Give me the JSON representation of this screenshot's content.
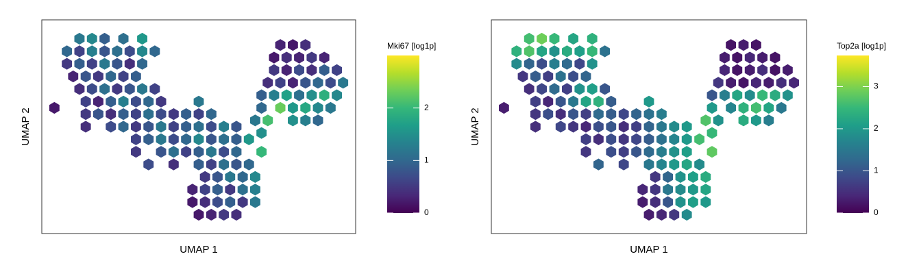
{
  "chart_data": [
    {
      "type": "hexbin",
      "xlabel": "UMAP 1",
      "ylabel": "UMAP 2",
      "colorbar_title": "Mki67 [log1p]",
      "colormap": "viridis",
      "xlim": [
        0,
        100
      ],
      "ylim": [
        0,
        68
      ],
      "clim": [
        0,
        3.0
      ],
      "cticks": [
        0,
        1,
        2
      ],
      "x": [
        12,
        16,
        20,
        26,
        32,
        8,
        12,
        16,
        20,
        24,
        28,
        32,
        36,
        8,
        12,
        16,
        20,
        24,
        28,
        32,
        10,
        14,
        18,
        22,
        26,
        30,
        12,
        16,
        20,
        24,
        28,
        32,
        36,
        14,
        18,
        22,
        26,
        30,
        34,
        38,
        50,
        14,
        18,
        22,
        26,
        30,
        34,
        38,
        42,
        46,
        50,
        54,
        14,
        22,
        26,
        30,
        34,
        38,
        42,
        46,
        50,
        54,
        58,
        62,
        30,
        34,
        38,
        42,
        46,
        50,
        54,
        58,
        62,
        66,
        30,
        38,
        42,
        46,
        50,
        54,
        58,
        62,
        70,
        34,
        42,
        50,
        54,
        58,
        62,
        66,
        52,
        56,
        60,
        64,
        68,
        48,
        52,
        56,
        60,
        64,
        68,
        48,
        52,
        56,
        60,
        64,
        68,
        50,
        54,
        58,
        62,
        76,
        80,
        84,
        74,
        78,
        82,
        86,
        90,
        74,
        78,
        82,
        86,
        90,
        94,
        72,
        76,
        80,
        84,
        88,
        92,
        96,
        70,
        74,
        78,
        82,
        86,
        90,
        94,
        4,
        70,
        76,
        80,
        84,
        88,
        92,
        68,
        72,
        80,
        84,
        88,
        70
      ],
      "y": [
        62,
        62,
        62,
        62,
        62,
        58,
        58,
        58,
        58,
        58,
        58,
        58,
        58,
        54,
        54,
        54,
        54,
        54,
        54,
        54,
        50,
        50,
        50,
        50,
        50,
        50,
        46,
        46,
        46,
        46,
        46,
        46,
        46,
        42,
        42,
        42,
        42,
        42,
        42,
        42,
        42,
        38,
        38,
        38,
        38,
        38,
        38,
        38,
        38,
        38,
        38,
        38,
        34,
        34,
        34,
        34,
        34,
        34,
        34,
        34,
        34,
        34,
        34,
        34,
        30,
        30,
        30,
        30,
        30,
        30,
        30,
        30,
        30,
        30,
        26,
        26,
        26,
        26,
        26,
        26,
        26,
        26,
        26,
        22,
        22,
        22,
        22,
        22,
        22,
        22,
        18,
        18,
        18,
        18,
        18,
        14,
        14,
        14,
        14,
        14,
        14,
        10,
        10,
        10,
        10,
        10,
        10,
        6,
        6,
        6,
        6,
        60,
        60,
        60,
        56,
        56,
        56,
        56,
        56,
        52,
        52,
        52,
        52,
        52,
        52,
        48,
        48,
        48,
        48,
        48,
        48,
        48,
        44,
        44,
        44,
        44,
        44,
        44,
        44,
        40,
        40,
        40,
        40,
        40,
        40,
        40,
        36,
        36,
        36,
        36,
        36,
        32
      ],
      "values": [
        1.2,
        1.4,
        0.9,
        1.1,
        1.6,
        1.0,
        0.6,
        1.3,
        0.8,
        1.1,
        0.7,
        1.4,
        1.0,
        0.5,
        0.9,
        0.6,
        1.2,
        0.8,
        0.4,
        1.0,
        0.3,
        0.8,
        0.5,
        1.0,
        0.6,
        0.9,
        0.4,
        0.7,
        1.1,
        0.5,
        0.8,
        1.2,
        0.6,
        0.6,
        0.3,
        0.9,
        1.3,
        0.7,
        1.0,
        0.5,
        1.2,
        0.5,
        0.8,
        0.4,
        0.9,
        0.6,
        1.1,
        0.7,
        0.5,
        0.9,
        0.6,
        1.0,
        0.4,
        0.7,
        1.0,
        0.5,
        0.8,
        1.2,
        0.6,
        0.9,
        1.1,
        0.7,
        1.3,
        0.8,
        0.6,
        0.9,
        1.2,
        0.7,
        1.0,
        1.4,
        0.8,
        1.1,
        0.9,
        1.6,
        0.5,
        0.8,
        1.1,
        0.6,
        0.9,
        1.2,
        0.7,
        1.0,
        2.0,
        0.7,
        0.4,
        0.9,
        0.6,
        1.1,
        0.8,
        1.0,
        0.5,
        0.8,
        1.2,
        1.0,
        1.4,
        0.3,
        0.6,
        0.9,
        0.5,
        1.1,
        1.3,
        0.2,
        0.4,
        0.7,
        0.9,
        0.5,
        1.2,
        0.2,
        0.3,
        0.5,
        0.4,
        0.3,
        0.2,
        0.4,
        0.2,
        0.4,
        0.3,
        0.5,
        0.3,
        0.5,
        0.3,
        0.7,
        0.4,
        0.9,
        0.6,
        0.4,
        0.6,
        0.3,
        0.8,
        1.0,
        0.7,
        1.2,
        0.9,
        1.3,
        1.7,
        1.1,
        1.5,
        1.9,
        1.4,
        0.2,
        1.0,
        2.3,
        1.6,
        1.8,
        1.4,
        1.2,
        1.2,
        2.1,
        1.5,
        1.3,
        1.0,
        1.5
      ]
    },
    {
      "type": "hexbin",
      "xlabel": "UMAP 1",
      "ylabel": "UMAP 2",
      "colorbar_title": "Top2a [log1p]",
      "colormap": "viridis",
      "xlim": [
        0,
        100
      ],
      "ylim": [
        0,
        68
      ],
      "clim": [
        0,
        3.74
      ],
      "cticks": [
        0,
        1,
        2,
        3
      ],
      "x": [
        12,
        16,
        20,
        26,
        32,
        8,
        12,
        16,
        20,
        24,
        28,
        32,
        36,
        8,
        12,
        16,
        20,
        24,
        28,
        32,
        10,
        14,
        18,
        22,
        26,
        30,
        12,
        16,
        20,
        24,
        28,
        32,
        36,
        14,
        18,
        22,
        26,
        30,
        34,
        38,
        50,
        14,
        18,
        22,
        26,
        30,
        34,
        38,
        42,
        46,
        50,
        54,
        14,
        22,
        26,
        30,
        34,
        38,
        42,
        46,
        50,
        54,
        58,
        62,
        30,
        34,
        38,
        42,
        46,
        50,
        54,
        58,
        62,
        66,
        30,
        38,
        42,
        46,
        50,
        54,
        58,
        62,
        70,
        34,
        42,
        50,
        54,
        58,
        62,
        66,
        52,
        56,
        60,
        64,
        68,
        48,
        52,
        56,
        60,
        64,
        68,
        48,
        52,
        56,
        60,
        64,
        68,
        50,
        54,
        58,
        62,
        76,
        80,
        84,
        74,
        78,
        82,
        86,
        90,
        74,
        78,
        82,
        86,
        90,
        94,
        72,
        76,
        80,
        84,
        88,
        92,
        96,
        70,
        74,
        78,
        82,
        86,
        90,
        94,
        4,
        70,
        76,
        80,
        84,
        88,
        92,
        68,
        72,
        80,
        84,
        88,
        70
      ],
      "y": [
        62,
        62,
        62,
        62,
        62,
        58,
        58,
        58,
        58,
        58,
        58,
        58,
        58,
        54,
        54,
        54,
        54,
        54,
        54,
        54,
        50,
        50,
        50,
        50,
        50,
        50,
        46,
        46,
        46,
        46,
        46,
        46,
        46,
        42,
        42,
        42,
        42,
        42,
        42,
        42,
        42,
        38,
        38,
        38,
        38,
        38,
        38,
        38,
        38,
        38,
        38,
        38,
        34,
        34,
        34,
        34,
        34,
        34,
        34,
        34,
        34,
        34,
        34,
        34,
        30,
        30,
        30,
        30,
        30,
        30,
        30,
        30,
        30,
        30,
        26,
        26,
        26,
        26,
        26,
        26,
        26,
        26,
        26,
        22,
        22,
        22,
        22,
        22,
        22,
        22,
        18,
        18,
        18,
        18,
        18,
        14,
        14,
        14,
        14,
        14,
        14,
        10,
        10,
        10,
        10,
        10,
        10,
        6,
        6,
        6,
        6,
        60,
        60,
        60,
        56,
        56,
        56,
        56,
        56,
        52,
        52,
        52,
        52,
        52,
        52,
        48,
        48,
        48,
        48,
        48,
        48,
        48,
        44,
        44,
        44,
        44,
        44,
        44,
        44,
        40,
        40,
        40,
        40,
        40,
        40,
        40,
        36,
        36,
        36,
        36,
        36,
        32
      ],
      "values": [
        2.6,
        2.9,
        2.5,
        2.2,
        2.4,
        2.4,
        2.7,
        2.2,
        1.9,
        2.3,
        2.1,
        2.5,
        1.4,
        1.8,
        1.2,
        0.9,
        1.6,
        1.3,
        0.8,
        1.9,
        0.6,
        1.1,
        0.7,
        1.4,
        0.9,
        1.2,
        0.5,
        0.8,
        1.3,
        0.7,
        1.9,
        2.1,
        1.0,
        0.7,
        0.4,
        1.0,
        1.5,
        2.2,
        2.4,
        1.1,
        2.0,
        0.6,
        0.9,
        0.5,
        1.0,
        0.7,
        1.3,
        1.1,
        0.8,
        1.2,
        1.4,
        1.6,
        0.5,
        0.8,
        0.6,
        0.4,
        0.9,
        1.0,
        0.5,
        0.7,
        1.2,
        1.5,
        1.8,
        2.0,
        0.7,
        0.5,
        0.9,
        0.6,
        0.8,
        1.1,
        1.4,
        1.7,
        2.0,
        2.6,
        0.6,
        0.9,
        0.7,
        1.0,
        1.3,
        1.6,
        1.9,
        2.1,
        2.8,
        1.2,
        0.8,
        1.5,
        1.7,
        2.0,
        2.2,
        1.8,
        0.6,
        1.2,
        1.9,
        2.1,
        2.3,
        0.4,
        0.6,
        1.5,
        1.8,
        2.0,
        2.2,
        0.3,
        0.5,
        1.0,
        1.9,
        2.1,
        2.0,
        0.3,
        0.4,
        0.6,
        1.8,
        0.2,
        0.3,
        0.2,
        0.3,
        0.2,
        0.4,
        0.3,
        0.2,
        0.4,
        0.2,
        0.3,
        0.5,
        0.2,
        0.3,
        0.6,
        0.3,
        0.2,
        0.4,
        0.3,
        0.5,
        0.4,
        1.0,
        1.6,
        2.2,
        1.8,
        2.5,
        2.3,
        1.9,
        0.3,
        2.0,
        1.7,
        2.4,
        2.6,
        2.2,
        1.5,
        2.7,
        1.9,
        2.3,
        2.0,
        1.6,
        2.5
      ]
    }
  ]
}
